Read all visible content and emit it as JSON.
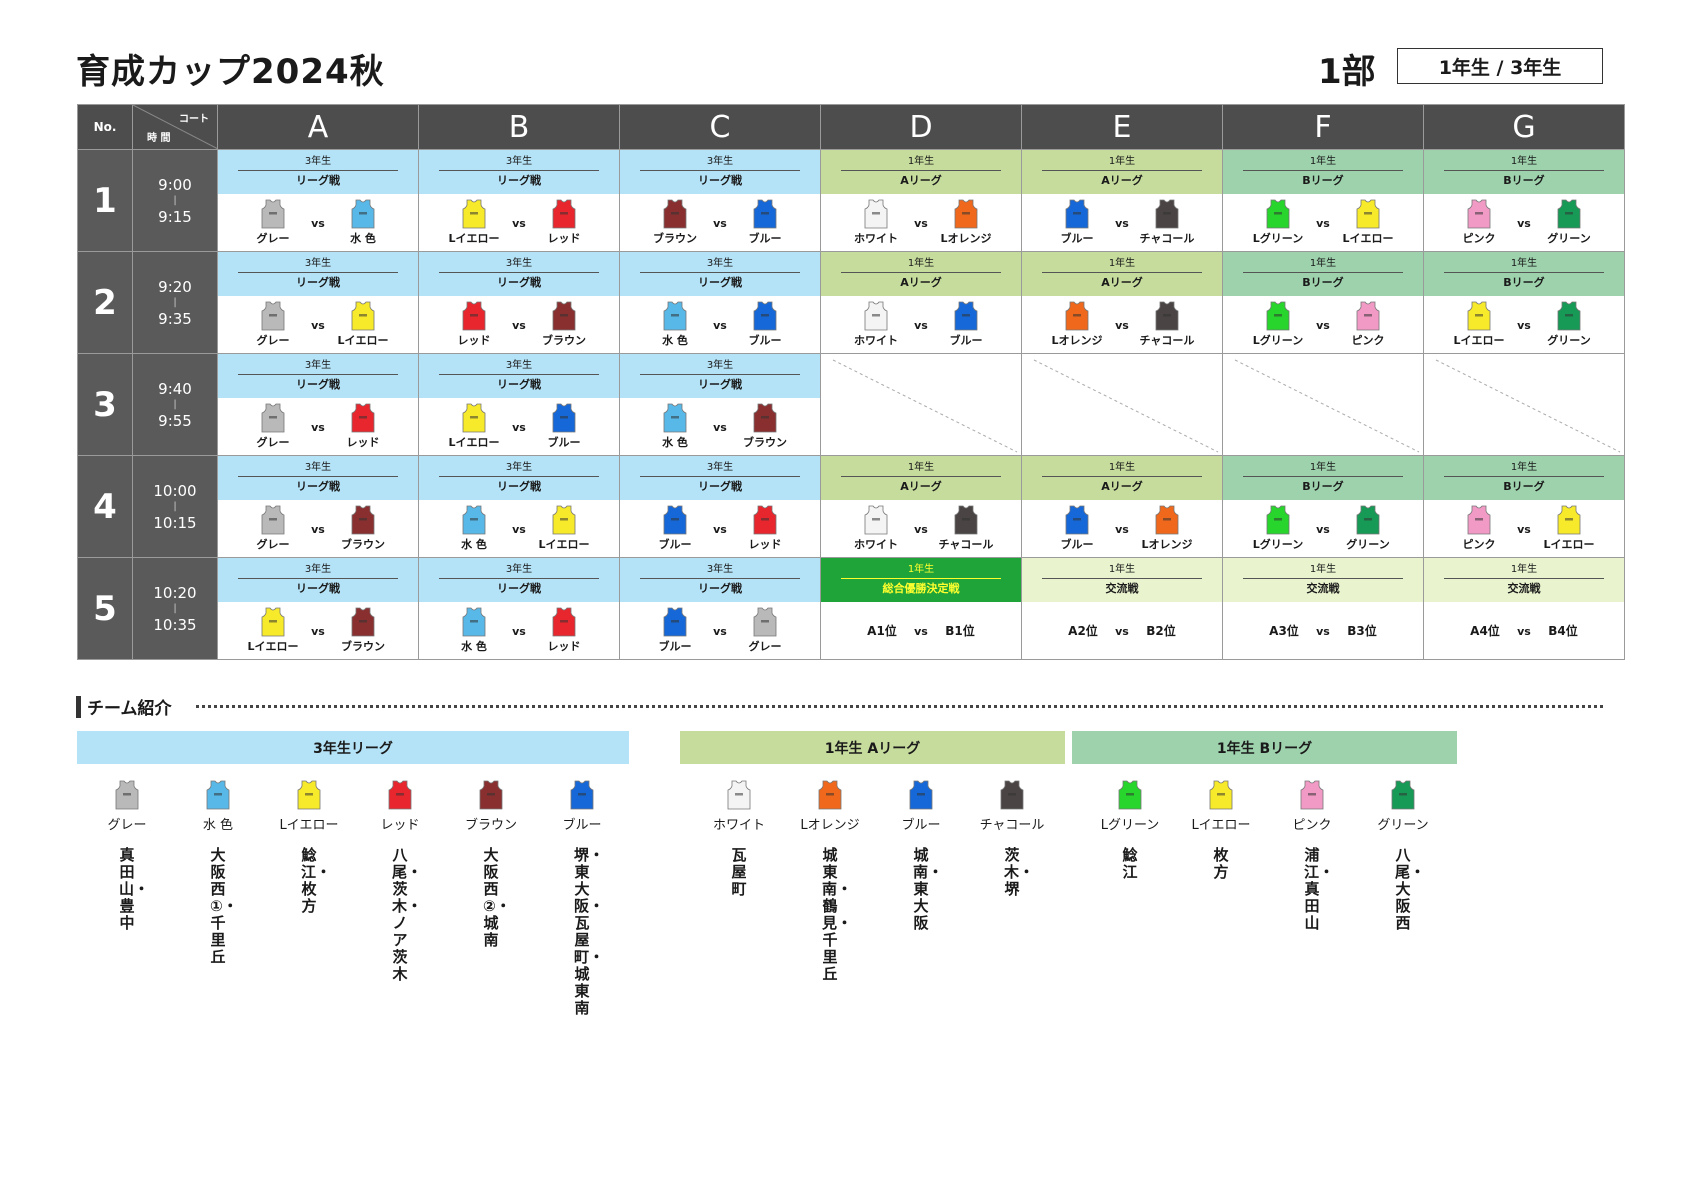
{
  "title": "育成カップ2024秋",
  "division": "1部",
  "grades": "1年生 / 3年生",
  "header": {
    "no": "No.",
    "court": "コート",
    "time": "時 間",
    "columns": [
      "A",
      "B",
      "C",
      "D",
      "E",
      "F",
      "G"
    ]
  },
  "labels": {
    "vs": "vs",
    "tick": "|"
  },
  "colors": {
    "グレー": "#b9b9b9",
    "水 色": "#58b8e8",
    "Lイエロー": "#f7ea2a",
    "レッド": "#e8262e",
    "ブラウン": "#8a2f2f",
    "ブルー": "#1668d8",
    "ホワイト": "#f4f4f4",
    "Lオレンジ": "#f0681b",
    "チャコール": "#4a4444",
    "Lグリーン": "#27d52c",
    "ピンク": "#f29ac6",
    "グリーン": "#169a56"
  },
  "rows": [
    {
      "no": "1",
      "start": "9:00",
      "end": "9:15",
      "cells": [
        {
          "type": "match",
          "style": "bg-3",
          "grade": "3年生",
          "kind": "リーグ戦",
          "home": "グレー",
          "away": "水 色"
        },
        {
          "type": "match",
          "style": "bg-3",
          "grade": "3年生",
          "kind": "リーグ戦",
          "home": "Lイエロー",
          "away": "レッド"
        },
        {
          "type": "match",
          "style": "bg-3",
          "grade": "3年生",
          "kind": "リーグ戦",
          "home": "ブラウン",
          "away": "ブルー"
        },
        {
          "type": "match",
          "style": "bg-1a",
          "grade": "1年生",
          "kind": "Aリーグ",
          "home": "ホワイト",
          "away": "Lオレンジ"
        },
        {
          "type": "match",
          "style": "bg-1a",
          "grade": "1年生",
          "kind": "Aリーグ",
          "home": "ブルー",
          "away": "チャコール"
        },
        {
          "type": "match",
          "style": "bg-1b",
          "grade": "1年生",
          "kind": "Bリーグ",
          "home": "Lグリーン",
          "away": "Lイエロー"
        },
        {
          "type": "match",
          "style": "bg-1b",
          "grade": "1年生",
          "kind": "Bリーグ",
          "home": "ピンク",
          "away": "グリーン"
        }
      ]
    },
    {
      "no": "2",
      "start": "9:20",
      "end": "9:35",
      "cells": [
        {
          "type": "match",
          "style": "bg-3",
          "grade": "3年生",
          "kind": "リーグ戦",
          "home": "グレー",
          "away": "Lイエロー"
        },
        {
          "type": "match",
          "style": "bg-3",
          "grade": "3年生",
          "kind": "リーグ戦",
          "home": "レッド",
          "away": "ブラウン"
        },
        {
          "type": "match",
          "style": "bg-3",
          "grade": "3年生",
          "kind": "リーグ戦",
          "home": "水 色",
          "away": "ブルー"
        },
        {
          "type": "match",
          "style": "bg-1a",
          "grade": "1年生",
          "kind": "Aリーグ",
          "home": "ホワイト",
          "away": "ブルー"
        },
        {
          "type": "match",
          "style": "bg-1a",
          "grade": "1年生",
          "kind": "Aリーグ",
          "home": "Lオレンジ",
          "away": "チャコール"
        },
        {
          "type": "match",
          "style": "bg-1b",
          "grade": "1年生",
          "kind": "Bリーグ",
          "home": "Lグリーン",
          "away": "ピンク"
        },
        {
          "type": "match",
          "style": "bg-1b",
          "grade": "1年生",
          "kind": "Bリーグ",
          "home": "Lイエロー",
          "away": "グリーン"
        }
      ]
    },
    {
      "no": "3",
      "start": "9:40",
      "end": "9:55",
      "cells": [
        {
          "type": "match",
          "style": "bg-3",
          "grade": "3年生",
          "kind": "リーグ戦",
          "home": "グレー",
          "away": "レッド"
        },
        {
          "type": "match",
          "style": "bg-3",
          "grade": "3年生",
          "kind": "リーグ戦",
          "home": "Lイエロー",
          "away": "ブルー"
        },
        {
          "type": "match",
          "style": "bg-3",
          "grade": "3年生",
          "kind": "リーグ戦",
          "home": "水 色",
          "away": "ブラウン"
        },
        {
          "type": "empty"
        },
        {
          "type": "empty"
        },
        {
          "type": "empty"
        },
        {
          "type": "empty"
        }
      ]
    },
    {
      "no": "4",
      "start": "10:00",
      "end": "10:15",
      "cells": [
        {
          "type": "match",
          "style": "bg-3",
          "grade": "3年生",
          "kind": "リーグ戦",
          "home": "グレー",
          "away": "ブラウン"
        },
        {
          "type": "match",
          "style": "bg-3",
          "grade": "3年生",
          "kind": "リーグ戦",
          "home": "水 色",
          "away": "Lイエロー"
        },
        {
          "type": "match",
          "style": "bg-3",
          "grade": "3年生",
          "kind": "リーグ戦",
          "home": "ブルー",
          "away": "レッド"
        },
        {
          "type": "match",
          "style": "bg-1a",
          "grade": "1年生",
          "kind": "Aリーグ",
          "home": "ホワイト",
          "away": "チャコール"
        },
        {
          "type": "match",
          "style": "bg-1a",
          "grade": "1年生",
          "kind": "Aリーグ",
          "home": "ブルー",
          "away": "Lオレンジ"
        },
        {
          "type": "match",
          "style": "bg-1b",
          "grade": "1年生",
          "kind": "Bリーグ",
          "home": "Lグリーン",
          "away": "グリーン"
        },
        {
          "type": "match",
          "style": "bg-1b",
          "grade": "1年生",
          "kind": "Bリーグ",
          "home": "ピンク",
          "away": "Lイエロー"
        }
      ]
    },
    {
      "no": "5",
      "start": "10:20",
      "end": "10:35",
      "cells": [
        {
          "type": "match",
          "style": "bg-3",
          "grade": "3年生",
          "kind": "リーグ戦",
          "home": "Lイエロー",
          "away": "ブラウン"
        },
        {
          "type": "match",
          "style": "bg-3",
          "grade": "3年生",
          "kind": "リーグ戦",
          "home": "水 色",
          "away": "レッド"
        },
        {
          "type": "match",
          "style": "bg-3",
          "grade": "3年生",
          "kind": "リーグ戦",
          "home": "ブルー",
          "away": "グレー"
        },
        {
          "type": "rank",
          "style": "bg-final",
          "grade": "1年生",
          "kind": "総合優勝決定戦",
          "home": "A1位",
          "away": "B1位"
        },
        {
          "type": "rank",
          "style": "bg-ex",
          "grade": "1年生",
          "kind": "交流戦",
          "home": "A2位",
          "away": "B2位"
        },
        {
          "type": "rank",
          "style": "bg-ex",
          "grade": "1年生",
          "kind": "交流戦",
          "home": "A3位",
          "away": "B3位"
        },
        {
          "type": "rank",
          "style": "bg-ex",
          "grade": "1年生",
          "kind": "交流戦",
          "home": "A4位",
          "away": "B4位"
        }
      ]
    }
  ],
  "team_intro": {
    "title": "チーム紹介",
    "leagues": [
      {
        "name": "3年生リーグ",
        "color": "#b4e2f6"
      },
      {
        "name": "1年生 Aリーグ",
        "color": "#c6dc9d"
      },
      {
        "name": "1年生 Bリーグ",
        "color": "#9ed2ad"
      }
    ],
    "teams": [
      {
        "name": "グレー",
        "schools": "真田山・豊中"
      },
      {
        "name": "水 色",
        "schools": "大阪西①・千里丘"
      },
      {
        "name": "Lイエロー",
        "schools": "鯰江・枚方"
      },
      {
        "name": "レッド",
        "schools": "八尾・茨木・ノア茨木"
      },
      {
        "name": "ブラウン",
        "schools": "大阪西②・城南"
      },
      {
        "name": "ブルー",
        "schools": "堺・東大阪・瓦屋町・城東南"
      },
      {
        "name": "ホワイト",
        "schools": "瓦屋町"
      },
      {
        "name": "Lオレンジ",
        "schools": "城東南・鶴見・千里丘"
      },
      {
        "name": "ブルー",
        "schools": "城南・東大阪"
      },
      {
        "name": "チャコール",
        "schools": "茨木・堺"
      },
      {
        "name": "Lグリーン",
        "schools": "鯰江"
      },
      {
        "name": "Lイエロー",
        "schools": "枚方"
      },
      {
        "name": "ピンク",
        "schools": "浦江・真田山"
      },
      {
        "name": "グリーン",
        "schools": "八尾・大阪西"
      }
    ]
  }
}
